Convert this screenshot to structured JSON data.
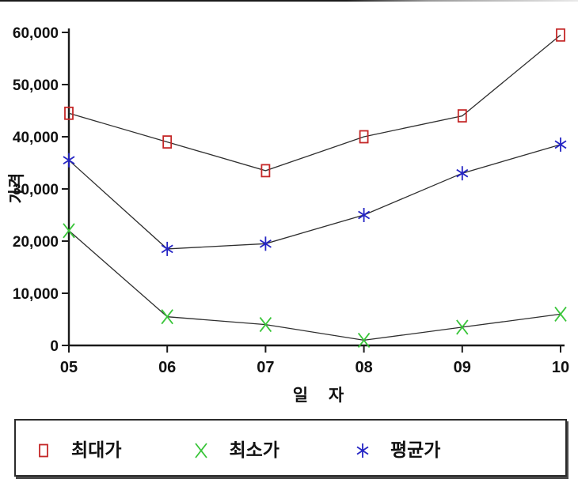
{
  "chart_data": {
    "type": "line",
    "title": "",
    "xlabel": "일 자",
    "ylabel": "가격",
    "categories": [
      "05",
      "06",
      "07",
      "08",
      "09",
      "10"
    ],
    "ylim": [
      0,
      60000
    ],
    "ytick_interval": 10000,
    "ytick_labels": [
      "0",
      "10,000",
      "20,000",
      "30,000",
      "40,000",
      "50,000",
      "60,000"
    ],
    "grid": false,
    "legend_position": "bottom",
    "axis_color": "#1a1a1a",
    "line_color": "#2e2e2e",
    "series": [
      {
        "name": "최대가",
        "marker": "open-square",
        "color": "#c42727",
        "values": [
          44500,
          39000,
          33500,
          40000,
          44000,
          59500
        ]
      },
      {
        "name": "최소가",
        "marker": "x-cross",
        "color": "#39c539",
        "values": [
          22000,
          5500,
          4000,
          1000,
          3500,
          6000
        ]
      },
      {
        "name": "평균가",
        "marker": "asterisk",
        "color": "#2424c4",
        "values": [
          35500,
          18500,
          19500,
          25000,
          33000,
          38500
        ]
      }
    ]
  }
}
